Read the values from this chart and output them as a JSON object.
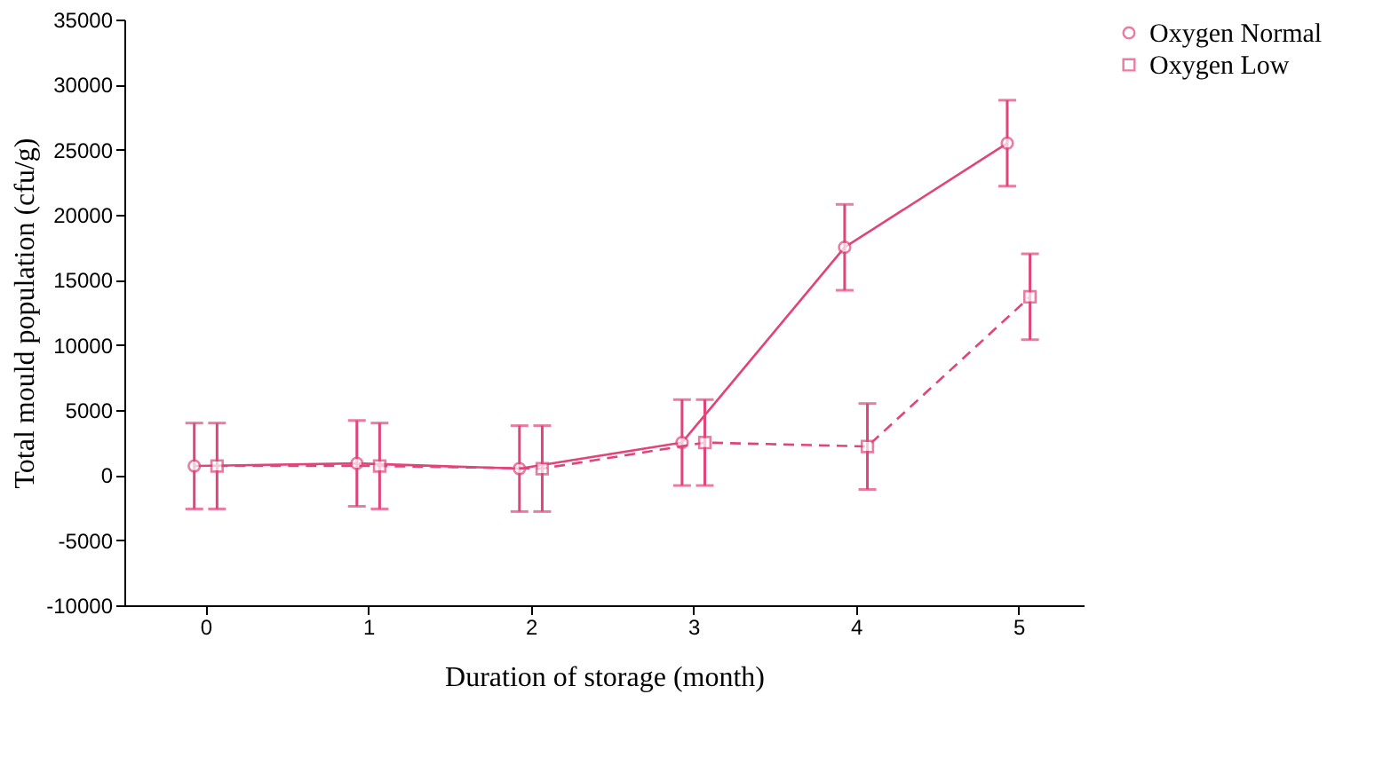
{
  "chart_data": {
    "type": "line",
    "xlabel": "Duration of storage (month)",
    "ylabel": "Total mould population (cfu/g)",
    "xlim": [
      -0.5,
      5.4
    ],
    "xticks": [
      0,
      1,
      2,
      3,
      4,
      5
    ],
    "ylim": [
      -10000,
      35000
    ],
    "yticks": [
      -10000,
      -5000,
      0,
      5000,
      10000,
      15000,
      20000,
      25000,
      30000,
      35000
    ],
    "grid": false,
    "legend": "right",
    "series": [
      {
        "name": "Oxygen Normal",
        "color": "#e0457a",
        "marker": "circle",
        "line_style": "solid",
        "x": [
          -0.07,
          0.93,
          1.93,
          2.93,
          3.93,
          4.93
        ],
        "values": [
          700,
          900,
          500,
          2500,
          17500,
          25500
        ],
        "errors": [
          3300,
          3300,
          3300,
          3300,
          3300,
          3300
        ]
      },
      {
        "name": "Oxygen Low",
        "color": "#e0457a",
        "marker": "square",
        "line_style": "dashed",
        "x": [
          0.07,
          1.07,
          2.07,
          3.07,
          4.07,
          5.07
        ],
        "values": [
          700,
          700,
          500,
          2500,
          2200,
          13700
        ],
        "errors": [
          3300,
          3300,
          3300,
          3300,
          3300,
          3300
        ]
      }
    ]
  }
}
